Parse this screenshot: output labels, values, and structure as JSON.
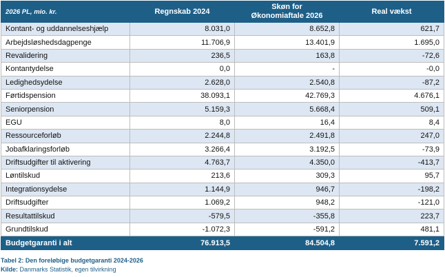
{
  "table": {
    "headers": {
      "label": "2026 PL, mio. kr.",
      "col1": "Regnskab 2024",
      "col2_line1": "Skøn for",
      "col2_line2": "Økonomiaftale 2026",
      "col3": "Real vækst"
    },
    "rows": [
      {
        "label": "Kontant- og uddannelseshjælp",
        "v1": "8.031,0",
        "v2": "8.652,8",
        "v3": "621,7"
      },
      {
        "label": "Arbejdsløshedsdagpenge",
        "v1": "11.706,9",
        "v2": "13.401,9",
        "v3": "1.695,0"
      },
      {
        "label": "Revalidering",
        "v1": "236,5",
        "v2": "163,8",
        "v3": "-72,6"
      },
      {
        "label": "Kontantydelse",
        "v1": "0,0",
        "v2": "-",
        "v3": "-0,0"
      },
      {
        "label": "Ledighedsydelse",
        "v1": "2.628,0",
        "v2": "2.540,8",
        "v3": "-87,2"
      },
      {
        "label": "Førtidspension",
        "v1": "38.093,1",
        "v2": "42.769,3",
        "v3": "4.676,1"
      },
      {
        "label": "Seniorpension",
        "v1": "5.159,3",
        "v2": "5.668,4",
        "v3": "509,1"
      },
      {
        "label": "EGU",
        "v1": "8,0",
        "v2": "16,4",
        "v3": "8,4"
      },
      {
        "label": "Ressourceforløb",
        "v1": "2.244,8",
        "v2": "2.491,8",
        "v3": "247,0"
      },
      {
        "label": "Jobafklaringsforløb",
        "v1": "3.266,4",
        "v2": "3.192,5",
        "v3": "-73,9"
      },
      {
        "label": "Driftsudgifter til aktivering",
        "v1": "4.763,7",
        "v2": "4.350,0",
        "v3": "-413,7"
      },
      {
        "label": "Løntilskud",
        "v1": "213,6",
        "v2": "309,3",
        "v3": "95,7"
      },
      {
        "label": "Integrationsydelse",
        "v1": "1.144,9",
        "v2": "946,7",
        "v3": "-198,2"
      },
      {
        "label": "Driftsudgifter",
        "v1": "1.069,2",
        "v2": "948,2",
        "v3": "-121,0"
      },
      {
        "label": "Resultattilskud",
        "v1": "-579,5",
        "v2": "-355,8",
        "v3": "223,7"
      },
      {
        "label": "Grundtilskud",
        "v1": "-1.072,3",
        "v2": "-591,2",
        "v3": "481,1"
      }
    ],
    "total": {
      "label": "Budgetgaranti i alt",
      "v1": "76.913,5",
      "v2": "84.504,8",
      "v3": "7.591,2"
    }
  },
  "caption": "Tabel 2: Den foreløbige budgetgaranti 2024-2026",
  "source": {
    "label": "Kilde:",
    "text": " Danmarks Statistik, egen tilvirkning"
  },
  "colors": {
    "header_bg": "#1e5f88",
    "shade_row": "#dde7f3"
  }
}
